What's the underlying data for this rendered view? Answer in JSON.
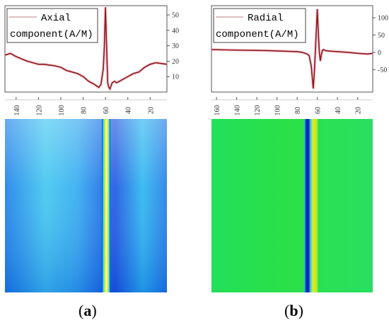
{
  "chart_data": [
    {
      "type": "line",
      "panel": "a",
      "panel_label_open": "(",
      "panel_label_letter": "a",
      "panel_label_close": ")",
      "legend": [
        "Axial",
        "component(A/M)"
      ],
      "ylim": [
        0,
        56
      ],
      "yticks": [
        10,
        20,
        30,
        40,
        50
      ],
      "xlim": [
        150,
        5
      ],
      "xticks": [
        140,
        120,
        100,
        80,
        60,
        40,
        20
      ],
      "line_color": "#8b1a1a",
      "band_color": "#f4b8c8",
      "series": [
        {
          "x": [
            150,
            145,
            140,
            135,
            130,
            125,
            120,
            115,
            110,
            105,
            100,
            95,
            90,
            85,
            80,
            75,
            70,
            68,
            66,
            64,
            62,
            61,
            60,
            59,
            58,
            57,
            56,
            55,
            54,
            52,
            50,
            45,
            40,
            35,
            30,
            25,
            20,
            15,
            10,
            5
          ],
          "y": [
            24,
            25,
            23,
            21.5,
            20,
            19,
            18,
            18,
            17.5,
            17,
            16,
            14,
            13,
            12,
            10,
            7,
            5,
            4,
            3,
            5,
            15,
            30,
            55,
            30,
            6,
            3,
            2,
            4,
            6,
            7,
            6,
            8,
            10,
            12,
            13,
            16,
            18,
            19,
            18.5,
            18
          ]
        }
      ]
    },
    {
      "type": "line",
      "panel": "b",
      "panel_label_open": "(",
      "panel_label_letter": "b",
      "panel_label_close": ")",
      "legend": [
        "Radial",
        "component(A/M)"
      ],
      "ylim": [
        -115,
        135
      ],
      "yticks": [
        -50,
        0,
        50,
        100
      ],
      "xlim": [
        165,
        5
      ],
      "xticks": [
        160,
        140,
        120,
        100,
        80,
        60,
        40,
        20
      ],
      "line_color": "#8b1a1a",
      "band_color": "#f4b8c8",
      "series": [
        {
          "x": [
            165,
            150,
            130,
            110,
            100,
            90,
            80,
            75,
            70,
            68,
            66,
            64,
            63,
            62,
            61,
            60,
            59,
            58,
            57,
            56,
            55,
            54,
            52,
            50,
            45,
            40,
            30,
            20,
            10,
            5
          ],
          "y": [
            8,
            7,
            6,
            5,
            4,
            3,
            2,
            0,
            -5,
            -10,
            -40,
            -105,
            -60,
            0,
            60,
            125,
            60,
            0,
            -25,
            -8,
            5,
            8,
            5,
            4,
            3,
            2,
            0,
            -3,
            -5,
            -3
          ]
        }
      ]
    },
    {
      "type": "heatmap",
      "panel": "a",
      "colormap": "cyan-blue",
      "peak_x": 60
    },
    {
      "type": "heatmap",
      "panel": "b",
      "colormap": "green",
      "peak_x": 62
    }
  ]
}
